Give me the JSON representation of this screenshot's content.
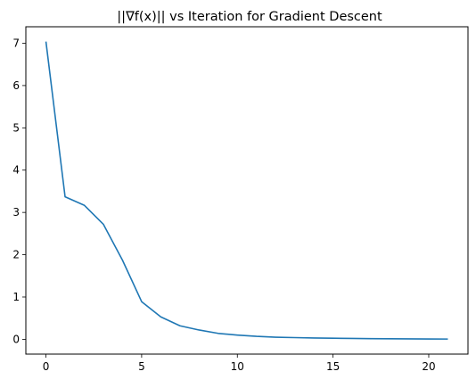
{
  "chart_data": {
    "type": "line",
    "title": "||∇f(x)|| vs Iteration for Gradient Descent",
    "xlabel": "",
    "ylabel": "",
    "xlim": [
      -1.05,
      22.05
    ],
    "ylim": [
      -0.35,
      7.39
    ],
    "x_ticks": [
      0,
      5,
      10,
      15,
      20
    ],
    "y_ticks": [
      0,
      1,
      2,
      3,
      4,
      5,
      6,
      7
    ],
    "grid": false,
    "legend": "none",
    "series": [
      {
        "color": "#1f77b4",
        "x": [
          0,
          1,
          2,
          3,
          4,
          5,
          6,
          7,
          8,
          9,
          10,
          11,
          12,
          13,
          14,
          15,
          16,
          17,
          18,
          19,
          20,
          21
        ],
        "y": [
          7.04,
          3.37,
          3.17,
          2.72,
          1.87,
          0.89,
          0.53,
          0.32,
          0.22,
          0.14,
          0.1,
          0.07,
          0.05,
          0.04,
          0.03,
          0.025,
          0.02,
          0.015,
          0.012,
          0.01,
          0.008,
          0.006
        ]
      }
    ]
  }
}
